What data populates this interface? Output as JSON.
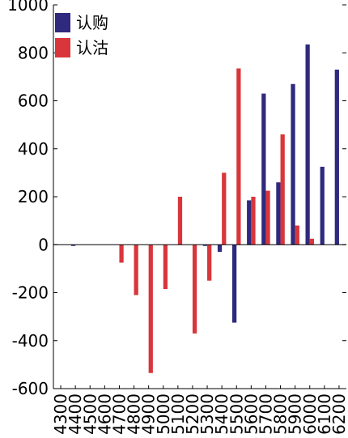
{
  "chart_data": {
    "type": "bar",
    "title": "",
    "xlabel": "",
    "ylabel": "",
    "categories": [
      "4300",
      "4400",
      "4500",
      "4600",
      "4700",
      "4800",
      "4900",
      "5000",
      "5100",
      "5200",
      "5300",
      "5400",
      "5500",
      "5600",
      "5700",
      "5800",
      "5900",
      "6000",
      "6100",
      "6200"
    ],
    "series": [
      {
        "name": "认购",
        "color": "#2f2a7d",
        "values": [
          0,
          -5,
          0,
          0,
          0,
          0,
          0,
          0,
          0,
          0,
          -5,
          -30,
          -325,
          185,
          630,
          260,
          670,
          835,
          325,
          730
        ]
      },
      {
        "name": "认沽",
        "color": "#d8363b",
        "values": [
          0,
          0,
          0,
          0,
          -75,
          -210,
          -535,
          -185,
          200,
          -370,
          -150,
          300,
          735,
          200,
          225,
          460,
          80,
          25,
          0,
          0
        ]
      }
    ],
    "ylim": [
      -600,
      1000
    ],
    "yticks": [
      -600,
      -400,
      -200,
      0,
      200,
      400,
      600,
      800,
      1000
    ],
    "grid": false,
    "legend_position": "top-left"
  }
}
